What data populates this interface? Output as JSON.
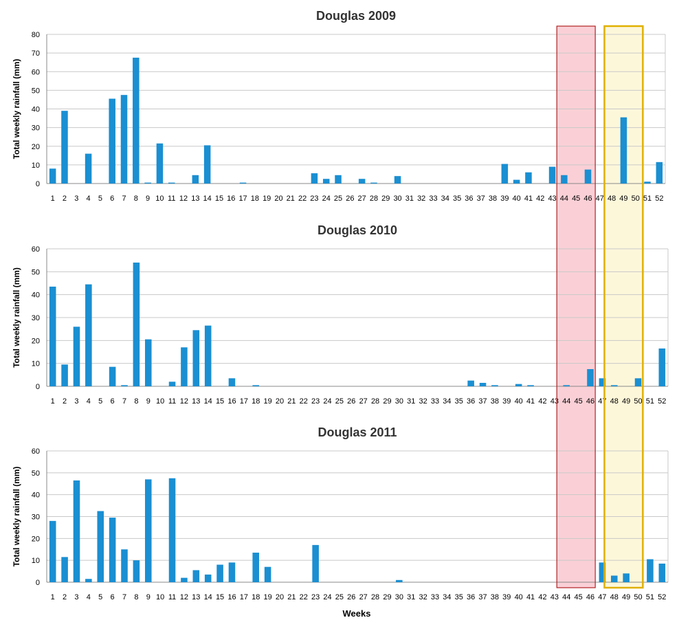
{
  "chart_data": [
    {
      "type": "bar",
      "title": "Douglas 2009",
      "ylabel": "Total weekly rainfall (mm)",
      "xlabel": "",
      "ylim": [
        0,
        80
      ],
      "yticks": [
        0,
        10,
        20,
        30,
        40,
        50,
        60,
        70,
        80
      ],
      "grid": true,
      "categories": [
        "1",
        "2",
        "3",
        "4",
        "5",
        "6",
        "7",
        "8",
        "9",
        "10",
        "11",
        "12",
        "13",
        "14",
        "15",
        "16",
        "17",
        "18",
        "19",
        "20",
        "21",
        "22",
        "23",
        "24",
        "25",
        "26",
        "27",
        "28",
        "29",
        "30",
        "31",
        "32",
        "33",
        "34",
        "35",
        "36",
        "37",
        "38",
        "39",
        "40",
        "41",
        "42",
        "43",
        "44",
        "45",
        "46",
        "47",
        "48",
        "49",
        "50",
        "51",
        "52"
      ],
      "values": [
        8,
        39,
        0,
        16,
        0,
        45.5,
        47.5,
        67.5,
        0.5,
        21.5,
        0.5,
        0,
        4.5,
        20.5,
        0,
        0,
        0.5,
        0,
        0,
        0,
        0,
        0,
        5.5,
        2.5,
        4.5,
        0,
        2.5,
        0.5,
        0,
        4,
        0,
        0,
        0,
        0,
        0,
        0,
        0,
        0,
        10.5,
        2,
        6,
        0,
        9,
        4.5,
        0,
        7.5,
        0,
        0,
        35.5,
        0,
        1,
        11.5
      ]
    },
    {
      "type": "bar",
      "title": "Douglas 2010",
      "ylabel": "Total weekly rainfall (mm)",
      "xlabel": "",
      "ylim": [
        0,
        60
      ],
      "yticks": [
        0,
        10,
        20,
        30,
        40,
        50,
        60
      ],
      "grid": true,
      "categories": [
        "1",
        "2",
        "3",
        "4",
        "5",
        "6",
        "7",
        "8",
        "9",
        "10",
        "11",
        "12",
        "13",
        "14",
        "15",
        "16",
        "17",
        "18",
        "19",
        "20",
        "21",
        "22",
        "23",
        "24",
        "25",
        "26",
        "27",
        "28",
        "29",
        "30",
        "31",
        "32",
        "33",
        "34",
        "35",
        "36",
        "37",
        "38",
        "39",
        "40",
        "41",
        "42",
        "43",
        "44",
        "45",
        "46",
        "47",
        "48",
        "49",
        "50",
        "51",
        "52"
      ],
      "values": [
        43.5,
        9.5,
        26,
        44.5,
        0,
        8.5,
        0.5,
        54,
        20.5,
        0,
        2,
        17,
        24.5,
        26.5,
        0,
        3.5,
        0,
        0.5,
        0,
        0,
        0,
        0,
        0,
        0,
        0,
        0,
        0,
        0,
        0,
        0,
        0,
        0,
        0,
        0,
        0,
        2.5,
        1.5,
        0.5,
        0,
        1,
        0.5,
        0,
        0,
        0.5,
        0,
        7.5,
        3.5,
        0.5,
        0,
        3.5,
        0,
        16.5
      ]
    },
    {
      "type": "bar",
      "title": "Douglas 2011",
      "ylabel": "Total weekly rainfall (mm)",
      "xlabel": "Weeks",
      "ylim": [
        0,
        60
      ],
      "yticks": [
        0,
        10,
        20,
        30,
        40,
        50,
        60
      ],
      "grid": true,
      "categories": [
        "1",
        "2",
        "3",
        "4",
        "5",
        "6",
        "7",
        "8",
        "9",
        "10",
        "11",
        "12",
        "13",
        "14",
        "15",
        "16",
        "17",
        "18",
        "19",
        "20",
        "21",
        "22",
        "23",
        "24",
        "25",
        "26",
        "27",
        "28",
        "29",
        "30",
        "31",
        "32",
        "33",
        "34",
        "35",
        "36",
        "37",
        "38",
        "39",
        "40",
        "41",
        "42",
        "43",
        "44",
        "45",
        "46",
        "47",
        "48",
        "49",
        "50",
        "51",
        "52"
      ],
      "values": [
        28,
        11.5,
        46.5,
        1.5,
        32.5,
        29.5,
        15,
        10,
        47,
        0,
        47.5,
        2,
        5.5,
        3.5,
        8,
        9,
        0,
        13.5,
        7,
        0,
        0,
        0,
        17,
        0,
        0,
        0,
        0,
        0,
        0,
        1,
        0,
        0,
        0,
        0,
        0,
        0,
        0,
        0,
        0,
        0,
        0,
        0,
        0,
        0,
        0,
        0,
        9,
        3,
        4,
        0,
        10.5,
        8.5
      ]
    }
  ],
  "highlights": [
    {
      "from_week": 44,
      "to_week": 46,
      "fill": "#f9c8cf",
      "stroke": "#b22222"
    },
    {
      "from_week": 48,
      "to_week": 50,
      "fill": "#fdf6d3",
      "stroke": "#e0b000"
    }
  ],
  "colors": {
    "bar": "#1a8fd2",
    "bar_dark": "#176a9c",
    "grid": "#c8c8c8",
    "axis": "#888888"
  }
}
